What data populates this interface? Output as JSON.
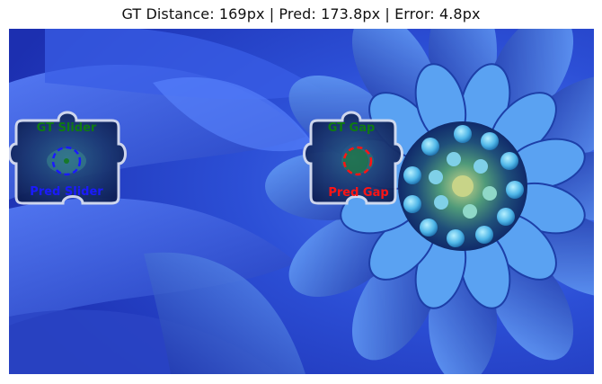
{
  "title": "GT Distance: 169px | Pred: 173.8px | Error: 4.8px",
  "labels": {
    "gt_slider": "GT Slider",
    "pred_slider": "Pred Slider",
    "gt_gap": "GT Gap",
    "pred_gap": "Pred Gap"
  },
  "colors": {
    "gt": "#0f7a12",
    "pred_slider": "#1a1aff",
    "pred_gap": "#ff1414",
    "background_petal": "#2f4fd8"
  },
  "icons": {
    "slider_piece": "puzzle-piece-icon",
    "gap_piece": "puzzle-piece-icon"
  }
}
